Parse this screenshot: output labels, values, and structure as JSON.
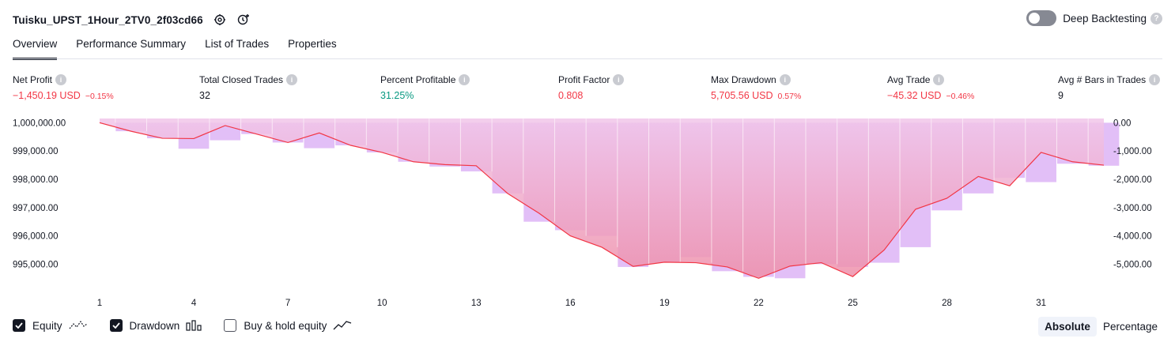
{
  "header": {
    "title": "Tuisku_UPST_1Hour_2TV0_2f03cd66",
    "icons": [
      "settings-icon",
      "add-alert-icon"
    ],
    "deep_backtesting_label": "Deep Backtesting",
    "deep_backtesting_on": false
  },
  "tabs": [
    {
      "label": "Overview",
      "active": true
    },
    {
      "label": "Performance Summary",
      "active": false
    },
    {
      "label": "List of Trades",
      "active": false
    },
    {
      "label": "Properties",
      "active": false
    }
  ],
  "metrics": {
    "net_profit": {
      "label": "Net Profit",
      "value": "−1,450.19 USD",
      "sub": "−0.15%"
    },
    "total_closed_trades": {
      "label": "Total Closed Trades",
      "value": "32"
    },
    "percent_profitable": {
      "label": "Percent Profitable",
      "value": "31.25%"
    },
    "profit_factor": {
      "label": "Profit Factor",
      "value": "0.808"
    },
    "max_drawdown": {
      "label": "Max Drawdown",
      "value": "5,705.56 USD",
      "sub": "0.57%"
    },
    "avg_trade": {
      "label": "Avg Trade",
      "value": "−45.32 USD",
      "sub": "−0.46%"
    },
    "avg_bars": {
      "label": "Avg # Bars in Trades",
      "value": "9"
    }
  },
  "colors": {
    "equity_line": "#f23645",
    "drawdown_bar": "#e2bff7",
    "area_top": "#f1c6ea",
    "area_bottom": "#ee8fa9",
    "profit_green": "#089981",
    "loss_red": "#f23645"
  },
  "chart_data": {
    "type": "line",
    "x": [
      1,
      2,
      3,
      4,
      5,
      6,
      7,
      8,
      9,
      10,
      11,
      12,
      13,
      14,
      15,
      16,
      17,
      18,
      19,
      20,
      21,
      22,
      23,
      24,
      25,
      26,
      27,
      28,
      29,
      30,
      31,
      32,
      33
    ],
    "x_tick_labels": [
      "1",
      "4",
      "7",
      "10",
      "13",
      "16",
      "19",
      "22",
      "25",
      "28",
      "31"
    ],
    "series": [
      {
        "name": "Equity",
        "axis": "left",
        "values": [
          1000000.0,
          999700.0,
          999450.0,
          999440.0,
          999900.0,
          999600.0,
          999300.0,
          999640.0,
          999200.0,
          998950.0,
          998620.0,
          998520.0,
          998480.0,
          997500.0,
          996800.0,
          996000.0,
          995600.0,
          994920.0,
          995070.0,
          995050.0,
          994900.0,
          994500.0,
          994930.0,
          995050.0,
          994560.0,
          995500.0,
          996940.0,
          997330.0,
          998100.0,
          997770.0,
          998950.0,
          998620.0,
          998500.0
        ]
      },
      {
        "name": "Drawdown",
        "axis": "right",
        "type": "bar",
        "values": [
          0,
          -300,
          -550,
          -920,
          -620,
          -400,
          -700,
          -900,
          -800,
          -1050,
          -1380,
          -1550,
          -1720,
          -2500,
          -3500,
          -3800,
          -4000,
          -5100,
          -4950,
          -4750,
          -5250,
          -5450,
          -5500,
          -5000,
          -5100,
          -4950,
          -4400,
          -3100,
          -2500,
          -1950,
          -2100,
          -1450,
          -1520
        ]
      }
    ],
    "left_axis": {
      "ticks": [
        "1,000,000.00",
        "999,000.00",
        "998,000.00",
        "997,000.00",
        "996,000.00",
        "995,000.00"
      ],
      "ylim": [
        994200,
        1000150
      ]
    },
    "right_axis": {
      "ticks": [
        "0.00",
        "-1,000.00",
        "-2,000.00",
        "-3,000.00",
        "-4,000.00",
        "-5,000.00"
      ],
      "ylim": [
        -5800,
        150
      ]
    },
    "grid": false
  },
  "legend": {
    "items": [
      {
        "label": "Equity",
        "checked": true,
        "icon": "equity-line-icon"
      },
      {
        "label": "Drawdown",
        "checked": true,
        "icon": "drawdown-bars-icon"
      },
      {
        "label": "Buy & hold equity",
        "checked": false,
        "icon": "buy-hold-line-icon"
      }
    ]
  },
  "modes": [
    {
      "label": "Absolute",
      "active": true
    },
    {
      "label": "Percentage",
      "active": false
    }
  ]
}
